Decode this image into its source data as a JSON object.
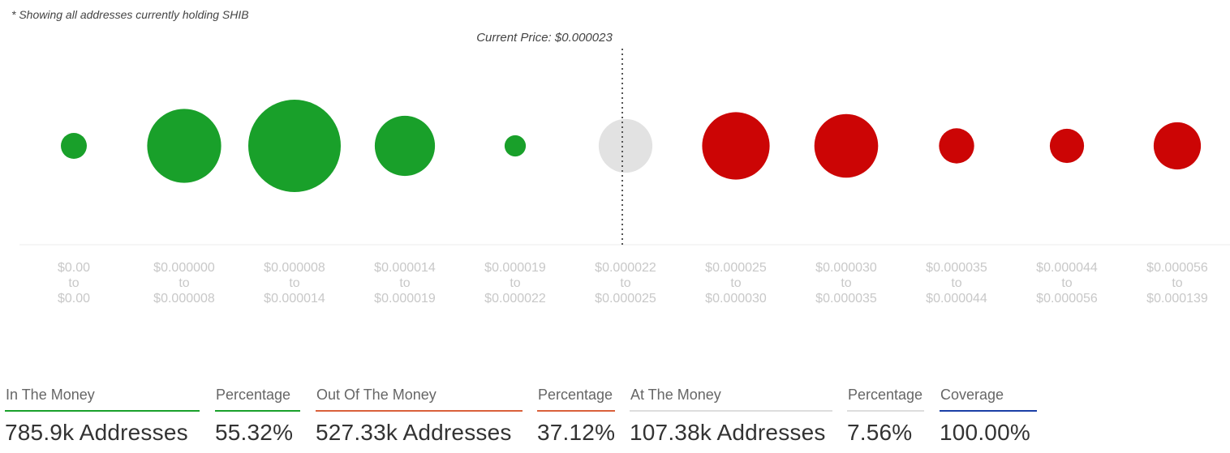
{
  "note": "* Showing all addresses currently holding SHIB",
  "current_price_label": "Current Price: $0.000023",
  "colors": {
    "in": "#19a02a",
    "out": "#cc0505",
    "at": "#e2e2e2",
    "coverage": "#1a3fa6"
  },
  "chart_data": {
    "type": "bubble",
    "title": "",
    "bubbles": [
      {
        "from": "$0.00",
        "to": "$0.00",
        "status": "in",
        "relative_size": 0.28
      },
      {
        "from": "$0.000000",
        "to": "$0.000008",
        "status": "in",
        "relative_size": 0.8
      },
      {
        "from": "$0.000008",
        "to": "$0.000014",
        "status": "in",
        "relative_size": 1.0
      },
      {
        "from": "$0.000014",
        "to": "$0.000019",
        "status": "in",
        "relative_size": 0.65
      },
      {
        "from": "$0.000019",
        "to": "$0.000022",
        "status": "in",
        "relative_size": 0.23
      },
      {
        "from": "$0.000022",
        "to": "$0.000025",
        "status": "at",
        "relative_size": 0.58
      },
      {
        "from": "$0.000025",
        "to": "$0.000030",
        "status": "out",
        "relative_size": 0.73
      },
      {
        "from": "$0.000030",
        "to": "$0.000035",
        "status": "out",
        "relative_size": 0.69
      },
      {
        "from": "$0.000035",
        "to": "$0.000044",
        "status": "out",
        "relative_size": 0.38
      },
      {
        "from": "$0.000044",
        "to": "$0.000056",
        "status": "out",
        "relative_size": 0.37
      },
      {
        "from": "$0.000056",
        "to": "$0.000139",
        "status": "out",
        "relative_size": 0.51
      }
    ],
    "current_price_marker_between": [
      5,
      6
    ]
  },
  "range_connector": "to",
  "summary": [
    {
      "label": "In The Money",
      "value": "785.9k Addresses",
      "color": "#19a02a"
    },
    {
      "label": "Percentage",
      "value": "55.32%",
      "color": "#19a02a"
    },
    {
      "label": "Out Of The Money",
      "value": "527.33k Addresses",
      "color": "#d9603b"
    },
    {
      "label": "Percentage",
      "value": "37.12%",
      "color": "#d9603b"
    },
    {
      "label": "At The Money",
      "value": "107.38k Addresses",
      "color": "#dddddd"
    },
    {
      "label": "Percentage",
      "value": "7.56%",
      "color": "#dddddd"
    },
    {
      "label": "Coverage",
      "value": "100.00%",
      "color": "#1a3fa6"
    }
  ]
}
